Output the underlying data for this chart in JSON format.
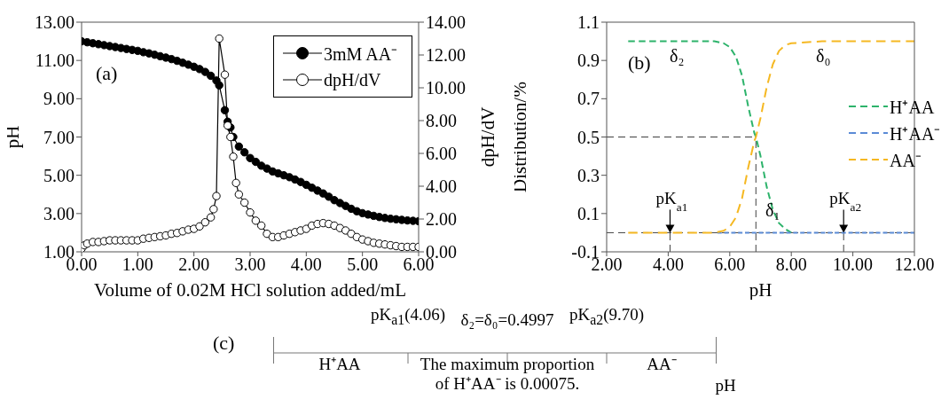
{
  "chart_data": [
    {
      "type": "line",
      "title": "(a)",
      "xlabel": "Volume of 0.02M HCl solution added/mL",
      "ylabel": "pH",
      "y2label": "dpH/dV",
      "marker": "circle",
      "legend": "top right",
      "xlim": [
        0,
        6
      ],
      "xticks": [
        {
          "value": 0,
          "label": "0.00"
        },
        {
          "value": 1,
          "label": "1.00"
        },
        {
          "value": 2,
          "label": "2.00"
        },
        {
          "value": 3,
          "label": "3.00"
        },
        {
          "value": 4,
          "label": "4.00"
        },
        {
          "value": 5,
          "label": "5.00"
        },
        {
          "value": 6,
          "label": "6.00"
        }
      ],
      "ylim": [
        1,
        13
      ],
      "yticks": [
        {
          "value": 1,
          "label": "1.00"
        },
        {
          "value": 3,
          "label": "3.00"
        },
        {
          "value": 5,
          "label": "5.00"
        },
        {
          "value": 7,
          "label": "7.00"
        },
        {
          "value": 9,
          "label": "9.00"
        },
        {
          "value": 11,
          "label": "11.00"
        },
        {
          "value": 13,
          "label": "13.00"
        }
      ],
      "y2lim": [
        0,
        14
      ],
      "y2ticks": [
        {
          "value": 0,
          "label": "0.00"
        },
        {
          "value": 2,
          "label": "2.00"
        },
        {
          "value": 4,
          "label": "4.00"
        },
        {
          "value": 6,
          "label": "6.00"
        },
        {
          "value": 8,
          "label": "8.00"
        },
        {
          "value": 10,
          "label": "10.00"
        },
        {
          "value": 12,
          "label": "12.00"
        },
        {
          "value": 14,
          "label": "14.00"
        }
      ],
      "series": [
        {
          "name": "3mM AA⁻",
          "color": "#000000",
          "x": [
            0,
            0.1,
            0.2,
            0.3,
            0.4,
            0.5,
            0.6,
            0.7,
            0.8,
            0.9,
            1.0,
            1.1,
            1.2,
            1.3,
            1.4,
            1.5,
            1.6,
            1.7,
            1.8,
            1.9,
            2.0,
            2.1,
            2.2,
            2.3,
            2.4,
            2.45,
            2.55,
            2.6,
            2.65,
            2.7,
            2.8,
            2.9,
            3.0,
            3.1,
            3.2,
            3.3,
            3.4,
            3.5,
            3.6,
            3.7,
            3.8,
            3.9,
            4.0,
            4.1,
            4.2,
            4.3,
            4.4,
            4.5,
            4.6,
            4.7,
            4.8,
            4.9,
            5.0,
            5.1,
            5.2,
            5.3,
            5.4,
            5.5,
            5.6,
            5.7,
            5.8,
            5.9,
            6.0
          ],
          "values": [
            12.0,
            11.95,
            11.9,
            11.85,
            11.8,
            11.75,
            11.7,
            11.65,
            11.6,
            11.55,
            11.5,
            11.43,
            11.37,
            11.3,
            11.22,
            11.15,
            11.07,
            10.98,
            10.88,
            10.78,
            10.67,
            10.55,
            10.4,
            10.2,
            9.95,
            9.7,
            8.4,
            7.8,
            7.5,
            7.0,
            6.5,
            6.2,
            5.9,
            5.7,
            5.5,
            5.35,
            5.2,
            5.1,
            5.0,
            4.9,
            4.78,
            4.65,
            4.5,
            4.35,
            4.2,
            4.05,
            3.88,
            3.7,
            3.55,
            3.4,
            3.25,
            3.12,
            3.02,
            2.95,
            2.88,
            2.82,
            2.77,
            2.73,
            2.7,
            2.67,
            2.64,
            2.62,
            2.6
          ]
        },
        {
          "name": "dpH/dV",
          "color": "#000000",
          "axis": "y2",
          "x": [
            0,
            0.05,
            0.1,
            0.2,
            0.3,
            0.4,
            0.5,
            0.6,
            0.7,
            0.8,
            0.9,
            1.0,
            1.1,
            1.2,
            1.3,
            1.4,
            1.5,
            1.6,
            1.7,
            1.8,
            1.9,
            2.0,
            2.1,
            2.2,
            2.3,
            2.35,
            2.4,
            2.45,
            2.55,
            2.6,
            2.65,
            2.7,
            2.75,
            2.8,
            2.9,
            3.0,
            3.1,
            3.2,
            3.3,
            3.4,
            3.5,
            3.6,
            3.7,
            3.8,
            3.9,
            4.0,
            4.1,
            4.2,
            4.3,
            4.4,
            4.5,
            4.6,
            4.7,
            4.8,
            4.9,
            5.0,
            5.1,
            5.2,
            5.3,
            5.4,
            5.5,
            5.6,
            5.7,
            5.8,
            5.9,
            6.0
          ],
          "values": [
            0.2,
            0.4,
            0.5,
            0.6,
            0.6,
            0.65,
            0.7,
            0.7,
            0.7,
            0.7,
            0.7,
            0.7,
            0.8,
            0.85,
            0.9,
            0.95,
            1.0,
            1.1,
            1.15,
            1.25,
            1.35,
            1.4,
            1.55,
            1.8,
            2.1,
            2.6,
            3.4,
            13.0,
            10.8,
            7.7,
            7.0,
            5.8,
            4.2,
            3.5,
            3.0,
            2.4,
            1.9,
            1.6,
            1.1,
            0.9,
            0.9,
            1.0,
            1.1,
            1.2,
            1.3,
            1.4,
            1.6,
            1.7,
            1.75,
            1.7,
            1.6,
            1.45,
            1.3,
            1.1,
            0.9,
            0.75,
            0.65,
            0.55,
            0.5,
            0.45,
            0.4,
            0.35,
            0.3,
            0.3,
            0.3,
            0.3
          ]
        }
      ]
    },
    {
      "type": "line",
      "title": "(b)",
      "xlabel": "pH",
      "ylabel": "Distribution/%",
      "marker": "none",
      "line_style": "dashed",
      "legend": "right",
      "xlim": [
        2,
        12
      ],
      "xticks": [
        {
          "value": 2,
          "label": "2.00"
        },
        {
          "value": 4,
          "label": "4.00"
        },
        {
          "value": 6,
          "label": "6.00"
        },
        {
          "value": 8,
          "label": "8.00"
        },
        {
          "value": 10,
          "label": "10.00"
        },
        {
          "value": 12,
          "label": "12.00"
        }
      ],
      "ylim": [
        -0.1,
        1.1
      ],
      "yticks": [
        -0.1,
        0.1,
        0.3,
        0.5,
        0.7,
        0.9,
        1.1
      ],
      "series": [
        {
          "name": "H⁺AA",
          "color": "#2db36b",
          "x": [
            2.7,
            5.0,
            5.5,
            5.8,
            6.0,
            6.2,
            6.4,
            6.6,
            6.8,
            6.85,
            7.0,
            7.2,
            7.4,
            7.6,
            7.8,
            8.0
          ],
          "values": [
            1,
            1,
            1,
            0.99,
            0.97,
            0.92,
            0.82,
            0.66,
            0.52,
            0.5,
            0.4,
            0.24,
            0.12,
            0.05,
            0.02,
            0
          ]
        },
        {
          "name": "H⁺AA⁻",
          "color": "#5b8bd6",
          "x": [
            5.6,
            12
          ],
          "values": [
            0,
            0
          ]
        },
        {
          "name": "AA⁻",
          "color": "#f5b822",
          "x": [
            2.7,
            5.5,
            5.8,
            6.0,
            6.2,
            6.4,
            6.6,
            6.8,
            6.85,
            7.0,
            7.2,
            7.4,
            7.6,
            7.8,
            8.0,
            9.0,
            12
          ],
          "values": [
            0,
            0,
            0.01,
            0.03,
            0.08,
            0.18,
            0.34,
            0.48,
            0.5,
            0.6,
            0.76,
            0.88,
            0.95,
            0.98,
            0.99,
            1,
            1
          ]
        }
      ],
      "ref_lines": [
        {
          "axis": "y",
          "value": 0,
          "color": "#404040",
          "line_style": "dashed"
        },
        {
          "axis": "y",
          "value": 0.5,
          "color": "#404040",
          "line_style": "dashed"
        },
        {
          "axis": "x",
          "value": 6.85,
          "color": "#404040",
          "line_style": "dashed"
        },
        {
          "axis": "x",
          "value": 4.06,
          "label": "pK$_{a1}$",
          "color": "#404040",
          "line_style": "dashed"
        },
        {
          "axis": "x",
          "value": 9.7,
          "label": "pK$_{a2}$",
          "color": "#404040",
          "line_style": "dashed"
        }
      ],
      "annotations": [
        "δ₂",
        "δ₀",
        "δ₁"
      ]
    },
    {
      "type": "other",
      "title": "(c)",
      "annotations": [
        "pK$_{a1}$(4.06)",
        "δ₂=δ₀=0.4997",
        "pK$_{a2}$(9.70)",
        "H⁺AA",
        "The maximum proportion of H⁺AA⁻ is 0.00075.",
        "AA⁻",
        "pH"
      ]
    }
  ]
}
